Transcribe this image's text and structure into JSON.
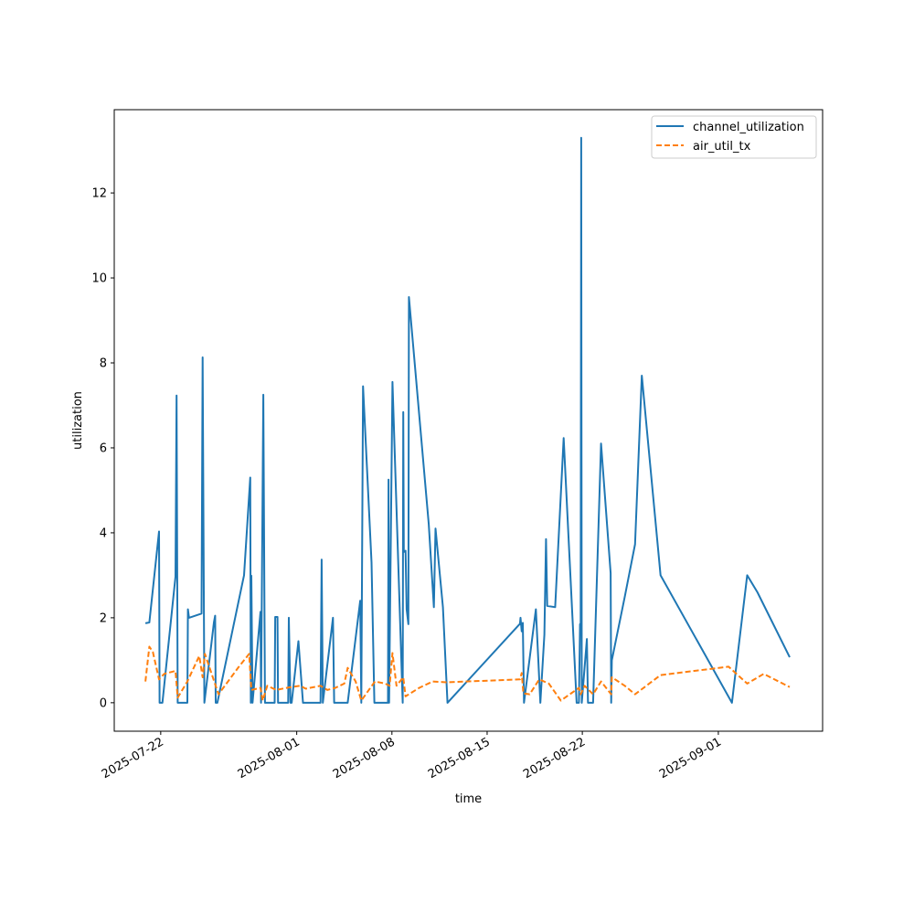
{
  "chart_data": {
    "type": "line",
    "xlabel": "time",
    "ylabel": "utilization",
    "x_is_date": true,
    "xlim": [
      "2025-07-18T14:00",
      "2025-09-08T16:00"
    ],
    "ylim": [
      -0.67,
      13.96
    ],
    "xticks": [
      {
        "date": "2025-07-22",
        "label": "2025-07-22"
      },
      {
        "date": "2025-08-01",
        "label": "2025-08-01"
      },
      {
        "date": "2025-08-08",
        "label": "2025-08-08"
      },
      {
        "date": "2025-08-15",
        "label": "2025-08-15"
      },
      {
        "date": "2025-08-22",
        "label": "2025-08-22"
      },
      {
        "date": "2025-09-01",
        "label": "2025-09-01"
      }
    ],
    "yticks": [
      0,
      2,
      4,
      6,
      8,
      10,
      12
    ],
    "grid": false,
    "legend_position": "upper right",
    "series": [
      {
        "name": "channel_utilization",
        "color": "#1f77b4",
        "style": "solid",
        "points": [
          [
            "2025-07-20T21:00",
            1.87
          ],
          [
            "2025-07-21T04:00",
            1.89
          ],
          [
            "2025-07-21T21:00",
            4.03
          ],
          [
            "2025-07-21T22:00",
            0.0
          ],
          [
            "2025-07-22T03:00",
            0.0
          ],
          [
            "2025-07-23T02:00",
            2.97
          ],
          [
            "2025-07-23T04:00",
            7.23
          ],
          [
            "2025-07-23T06:00",
            0.0
          ],
          [
            "2025-07-23T23:00",
            0.0
          ],
          [
            "2025-07-24T00:00",
            2.2
          ],
          [
            "2025-07-24T02:00",
            2.0
          ],
          [
            "2025-07-25T00:00",
            2.1
          ],
          [
            "2025-07-25T02:00",
            8.13
          ],
          [
            "2025-07-25T05:00",
            0.0
          ],
          [
            "2025-07-25T22:00",
            1.9
          ],
          [
            "2025-07-26T00:00",
            2.05
          ],
          [
            "2025-07-26T01:00",
            0.0
          ],
          [
            "2025-07-26T04:00",
            0.0
          ],
          [
            "2025-07-28T03:00",
            3.0
          ],
          [
            "2025-07-28T14:00",
            5.3
          ],
          [
            "2025-07-28T15:00",
            0.0
          ],
          [
            "2025-07-28T16:00",
            2.99
          ],
          [
            "2025-07-28T18:00",
            0.0
          ],
          [
            "2025-07-29T08:00",
            2.14
          ],
          [
            "2025-07-29T09:00",
            0.0
          ],
          [
            "2025-07-29T13:00",
            7.25
          ],
          [
            "2025-07-29T16:00",
            0.0
          ],
          [
            "2025-07-30T09:00",
            0.0
          ],
          [
            "2025-07-30T10:00",
            2.02
          ],
          [
            "2025-07-30T14:00",
            2.02
          ],
          [
            "2025-07-30T15:00",
            0.0
          ],
          [
            "2025-07-31T09:00",
            0.0
          ],
          [
            "2025-07-31T10:00",
            2.0
          ],
          [
            "2025-07-31T13:00",
            0.0
          ],
          [
            "2025-07-31T15:00",
            0.0
          ],
          [
            "2025-08-01T03:00",
            1.45
          ],
          [
            "2025-08-01T11:00",
            0.0
          ],
          [
            "2025-08-02T18:00",
            0.0
          ],
          [
            "2025-08-02T20:00",
            3.37
          ],
          [
            "2025-08-02T22:00",
            0.0
          ],
          [
            "2025-08-03T16:00",
            2.0
          ],
          [
            "2025-08-03T18:00",
            0.0
          ],
          [
            "2025-08-04T18:00",
            0.0
          ],
          [
            "2025-08-05T16:00",
            2.4
          ],
          [
            "2025-08-05T18:00",
            0.0
          ],
          [
            "2025-08-05T21:00",
            7.45
          ],
          [
            "2025-08-06T12:00",
            3.3
          ],
          [
            "2025-08-06T17:00",
            0.0
          ],
          [
            "2025-08-07T17:00",
            0.0
          ],
          [
            "2025-08-07T18:00",
            5.25
          ],
          [
            "2025-08-07T19:00",
            0.0
          ],
          [
            "2025-08-08T01:00",
            7.55
          ],
          [
            "2025-08-08T19:00",
            0.0
          ],
          [
            "2025-08-08T20:00",
            6.84
          ],
          [
            "2025-08-08T21:00",
            3.55
          ],
          [
            "2025-08-09T00:00",
            3.58
          ],
          [
            "2025-08-09T02:00",
            2.2
          ],
          [
            "2025-08-09T05:00",
            1.85
          ],
          [
            "2025-08-09T06:00",
            9.55
          ],
          [
            "2025-08-10T17:00",
            4.2
          ],
          [
            "2025-08-11T02:00",
            2.25
          ],
          [
            "2025-08-11T05:00",
            4.1
          ],
          [
            "2025-08-11T18:00",
            2.25
          ],
          [
            "2025-08-12T02:00",
            0.0
          ],
          [
            "2025-08-17T10:00",
            1.86
          ],
          [
            "2025-08-17T11:00",
            2.0
          ],
          [
            "2025-08-17T13:00",
            1.68
          ],
          [
            "2025-08-17T15:00",
            1.88
          ],
          [
            "2025-08-17T17:00",
            0.0
          ],
          [
            "2025-08-18T14:00",
            2.2
          ],
          [
            "2025-08-18T22:00",
            0.0
          ],
          [
            "2025-08-19T05:00",
            1.6
          ],
          [
            "2025-08-19T08:00",
            3.85
          ],
          [
            "2025-08-19T10:00",
            2.28
          ],
          [
            "2025-08-20T00:00",
            2.25
          ],
          [
            "2025-08-20T15:00",
            6.23
          ],
          [
            "2025-08-21T14:00",
            0.0
          ],
          [
            "2025-08-21T18:00",
            0.0
          ],
          [
            "2025-08-21T20:00",
            1.85
          ],
          [
            "2025-08-21T21:00",
            1.87
          ],
          [
            "2025-08-21T22:00",
            13.3
          ],
          [
            "2025-08-21T23:00",
            0.0
          ],
          [
            "2025-08-22T08:00",
            1.5
          ],
          [
            "2025-08-22T10:00",
            0.0
          ],
          [
            "2025-08-22T19:00",
            0.0
          ],
          [
            "2025-08-23T09:00",
            6.1
          ],
          [
            "2025-08-24T02:00",
            3.05
          ],
          [
            "2025-08-24T03:00",
            0.0
          ],
          [
            "2025-08-24T04:00",
            1.0
          ],
          [
            "2025-08-25T03:00",
            2.5
          ],
          [
            "2025-08-25T21:00",
            3.73
          ],
          [
            "2025-08-26T09:00",
            7.7
          ],
          [
            "2025-08-27T18:00",
            3.0
          ],
          [
            "2025-09-02T00:00",
            0.0
          ],
          [
            "2025-09-03T03:00",
            3.0
          ],
          [
            "2025-09-03T21:00",
            2.6
          ],
          [
            "2025-09-06T06:00",
            1.07
          ]
        ]
      },
      {
        "name": "air_util_tx",
        "color": "#ff7f0e",
        "style": "dashed",
        "points": [
          [
            "2025-07-20T21:00",
            0.5
          ],
          [
            "2025-07-21T04:00",
            1.32
          ],
          [
            "2025-07-21T10:00",
            1.2
          ],
          [
            "2025-07-21T21:00",
            0.55
          ],
          [
            "2025-07-22T06:00",
            0.68
          ],
          [
            "2025-07-23T02:00",
            0.75
          ],
          [
            "2025-07-23T06:00",
            0.12
          ],
          [
            "2025-07-23T23:00",
            0.5
          ],
          [
            "2025-07-24T06:00",
            0.7
          ],
          [
            "2025-07-24T20:00",
            1.1
          ],
          [
            "2025-07-25T02:00",
            0.6
          ],
          [
            "2025-07-25T06:00",
            1.15
          ],
          [
            "2025-07-26T06:00",
            0.2
          ],
          [
            "2025-07-27T18:00",
            0.85
          ],
          [
            "2025-07-28T12:00",
            1.15
          ],
          [
            "2025-07-28T16:00",
            0.3
          ],
          [
            "2025-07-29T08:00",
            0.35
          ],
          [
            "2025-07-29T12:00",
            0.05
          ],
          [
            "2025-07-29T20:00",
            0.4
          ],
          [
            "2025-07-30T12:00",
            0.3
          ],
          [
            "2025-07-31T10:00",
            0.36
          ],
          [
            "2025-08-01T06:00",
            0.4
          ],
          [
            "2025-08-01T16:00",
            0.33
          ],
          [
            "2025-08-02T18:00",
            0.4
          ],
          [
            "2025-08-03T06:00",
            0.3
          ],
          [
            "2025-08-03T20:00",
            0.35
          ],
          [
            "2025-08-04T12:00",
            0.45
          ],
          [
            "2025-08-04T18:00",
            0.82
          ],
          [
            "2025-08-05T08:00",
            0.5
          ],
          [
            "2025-08-05T18:00",
            0.05
          ],
          [
            "2025-08-06T18:00",
            0.5
          ],
          [
            "2025-08-07T12:00",
            0.45
          ],
          [
            "2025-08-07T20:00",
            0.4
          ],
          [
            "2025-08-08T01:00",
            1.17
          ],
          [
            "2025-08-08T08:00",
            0.4
          ],
          [
            "2025-08-08T20:00",
            0.6
          ],
          [
            "2025-08-09T00:00",
            0.15
          ],
          [
            "2025-08-10T00:00",
            0.35
          ],
          [
            "2025-08-11T00:00",
            0.5
          ],
          [
            "2025-08-12T00:00",
            0.48
          ],
          [
            "2025-08-17T10:00",
            0.55
          ],
          [
            "2025-08-17T13:00",
            0.7
          ],
          [
            "2025-08-17T16:00",
            0.22
          ],
          [
            "2025-08-18T03:00",
            0.2
          ],
          [
            "2025-08-18T20:00",
            0.55
          ],
          [
            "2025-08-19T13:00",
            0.45
          ],
          [
            "2025-08-20T10:00",
            0.05
          ],
          [
            "2025-08-21T18:00",
            0.35
          ],
          [
            "2025-08-21T21:00",
            0.2
          ],
          [
            "2025-08-22T04:00",
            0.4
          ],
          [
            "2025-08-22T19:00",
            0.2
          ],
          [
            "2025-08-23T09:00",
            0.5
          ],
          [
            "2025-08-24T03:00",
            0.2
          ],
          [
            "2025-08-24T04:00",
            0.6
          ],
          [
            "2025-08-25T03:00",
            0.4
          ],
          [
            "2025-08-25T21:00",
            0.2
          ],
          [
            "2025-08-27T18:00",
            0.65
          ],
          [
            "2025-09-01T18:00",
            0.85
          ],
          [
            "2025-09-03T03:00",
            0.45
          ],
          [
            "2025-09-04T08:00",
            0.68
          ],
          [
            "2025-09-06T06:00",
            0.37
          ]
        ]
      }
    ]
  }
}
